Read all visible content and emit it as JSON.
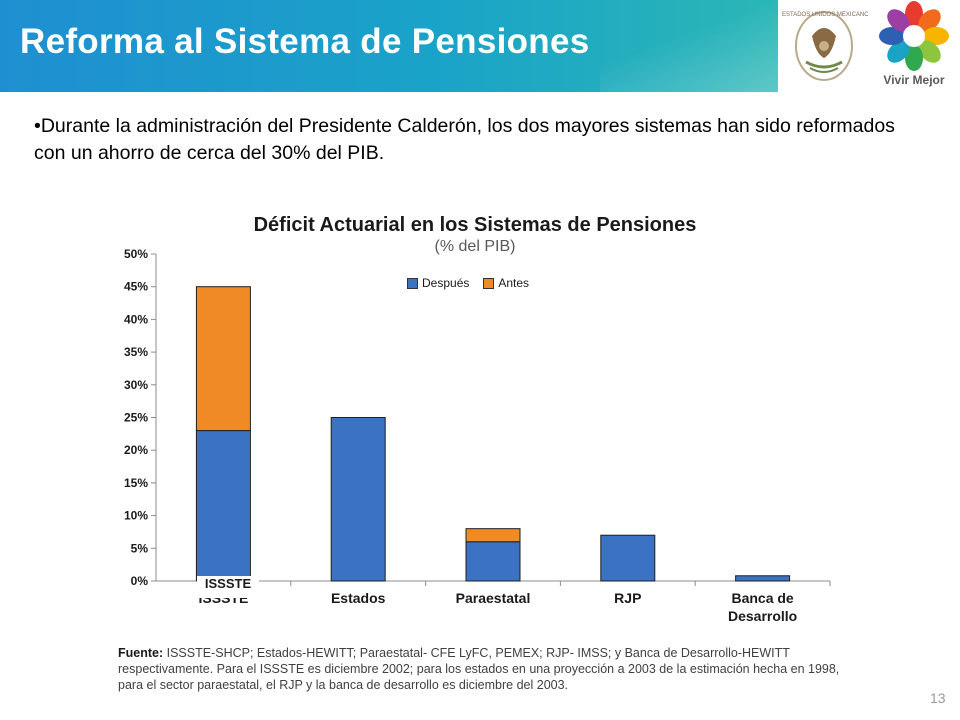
{
  "header": {
    "title": "Reforma al Sistema de Pensiones",
    "seal_caption": "ESTADOS UNIDOS MEXICANOS",
    "logo_label": "Vivir Mejor"
  },
  "bullet_text": "•Durante la administración del Presidente Calderón, los dos mayores sistemas han sido reformados con un ahorro de cerca del 30% del PIB.",
  "chart_data": {
    "type": "bar",
    "stacked": true,
    "title": "Déficit Actuarial en los Sistemas de Pensiones",
    "subtitle": "(% del PIB)",
    "categories": [
      "ISSSTE",
      "Estados",
      "Paraestatal",
      "RJP",
      "Banca de\nDesarrollo"
    ],
    "series": [
      {
        "name": "Después",
        "values": [
          23,
          25,
          6,
          7,
          0.8
        ],
        "color": "#3b72c1"
      },
      {
        "name": "Antes",
        "values": [
          22,
          0,
          2,
          0,
          0
        ],
        "color": "#f08a24"
      }
    ],
    "ylim": [
      0,
      50
    ],
    "yticks": [
      "0%",
      "5%",
      "10%",
      "15%",
      "20%",
      "25%",
      "30%",
      "35%",
      "40%",
      "45%",
      "50%"
    ],
    "legend_position": "top-center",
    "overlay_label": "ISSSTE",
    "grid": false
  },
  "source": {
    "label": "Fuente:",
    "text": "ISSSTE-SHCP; Estados-HEWITT; Paraestatal- CFE LyFC, PEMEX; RJP- IMSS; y Banca de Desarrollo-HEWITT respectivamente. Para el ISSSTE es diciembre 2002; para los estados en una proyección a 2003 de la estimación hecha en 1998, para el sector paraestatal, el RJP y la banca de desarrollo es diciembre del 2003."
  },
  "page_number": "13"
}
